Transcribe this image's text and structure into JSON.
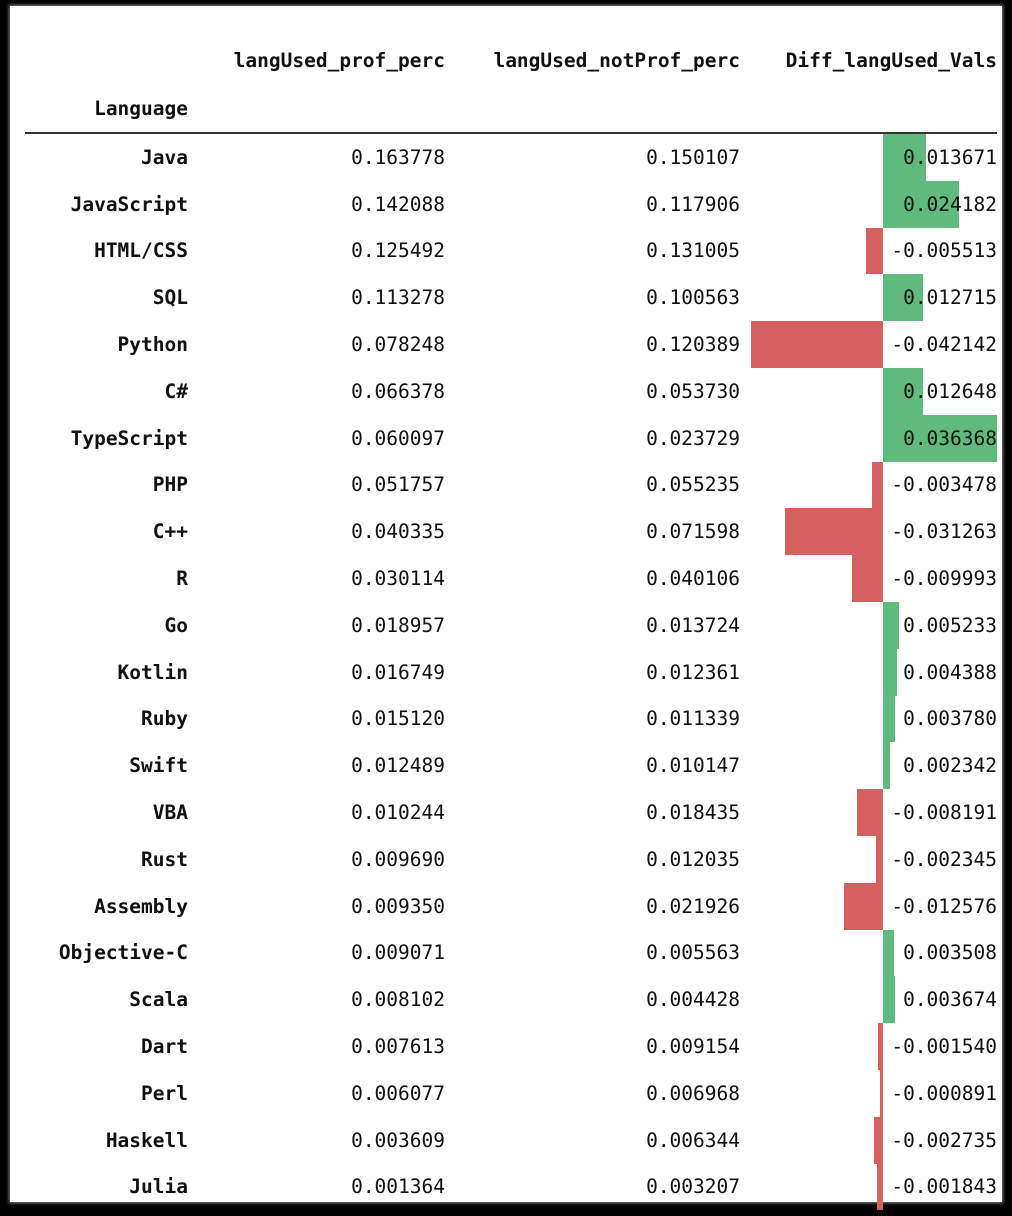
{
  "table": {
    "index_name": "Language",
    "columns": [
      "langUsed_prof_perc",
      "langUsed_notProf_perc",
      "Diff_langUsed_Vals"
    ],
    "bar_colors": {
      "positive": "#5fba7d",
      "negative": "#d65f5f"
    },
    "rows": [
      {
        "lang": "Java",
        "prof": "0.163778",
        "notprof": "0.150107",
        "diff": "0.013671"
      },
      {
        "lang": "JavaScript",
        "prof": "0.142088",
        "notprof": "0.117906",
        "diff": "0.024182"
      },
      {
        "lang": "HTML/CSS",
        "prof": "0.125492",
        "notprof": "0.131005",
        "diff": "-0.005513"
      },
      {
        "lang": "SQL",
        "prof": "0.113278",
        "notprof": "0.100563",
        "diff": "0.012715"
      },
      {
        "lang": "Python",
        "prof": "0.078248",
        "notprof": "0.120389",
        "diff": "-0.042142"
      },
      {
        "lang": "C#",
        "prof": "0.066378",
        "notprof": "0.053730",
        "diff": "0.012648"
      },
      {
        "lang": "TypeScript",
        "prof": "0.060097",
        "notprof": "0.023729",
        "diff": "0.036368"
      },
      {
        "lang": "PHP",
        "prof": "0.051757",
        "notprof": "0.055235",
        "diff": "-0.003478"
      },
      {
        "lang": "C++",
        "prof": "0.040335",
        "notprof": "0.071598",
        "diff": "-0.031263"
      },
      {
        "lang": "R",
        "prof": "0.030114",
        "notprof": "0.040106",
        "diff": "-0.009993"
      },
      {
        "lang": "Go",
        "prof": "0.018957",
        "notprof": "0.013724",
        "diff": "0.005233"
      },
      {
        "lang": "Kotlin",
        "prof": "0.016749",
        "notprof": "0.012361",
        "diff": "0.004388"
      },
      {
        "lang": "Ruby",
        "prof": "0.015120",
        "notprof": "0.011339",
        "diff": "0.003780"
      },
      {
        "lang": "Swift",
        "prof": "0.012489",
        "notprof": "0.010147",
        "diff": "0.002342"
      },
      {
        "lang": "VBA",
        "prof": "0.010244",
        "notprof": "0.018435",
        "diff": "-0.008191"
      },
      {
        "lang": "Rust",
        "prof": "0.009690",
        "notprof": "0.012035",
        "diff": "-0.002345"
      },
      {
        "lang": "Assembly",
        "prof": "0.009350",
        "notprof": "0.021926",
        "diff": "-0.012576"
      },
      {
        "lang": "Objective-C",
        "prof": "0.009071",
        "notprof": "0.005563",
        "diff": "0.003508"
      },
      {
        "lang": "Scala",
        "prof": "0.008102",
        "notprof": "0.004428",
        "diff": "0.003674"
      },
      {
        "lang": "Dart",
        "prof": "0.007613",
        "notprof": "0.009154",
        "diff": "-0.001540"
      },
      {
        "lang": "Perl",
        "prof": "0.006077",
        "notprof": "0.006968",
        "diff": "-0.000891"
      },
      {
        "lang": "Haskell",
        "prof": "0.003609",
        "notprof": "0.006344",
        "diff": "-0.002735"
      },
      {
        "lang": "Julia",
        "prof": "0.001364",
        "notprof": "0.003207",
        "diff": "-0.001843"
      }
    ]
  }
}
